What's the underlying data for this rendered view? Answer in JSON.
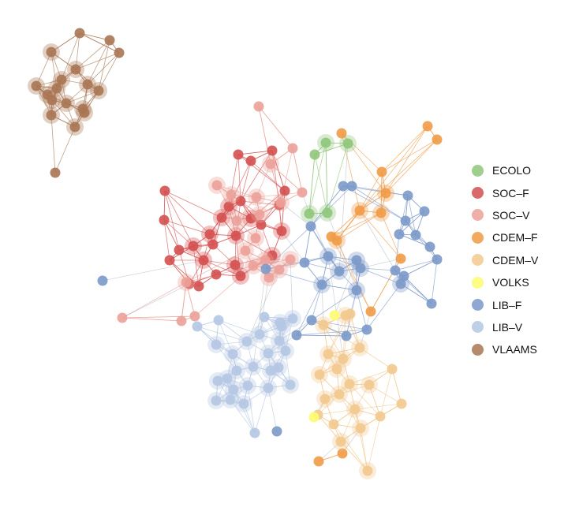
{
  "legend": {
    "items": [
      {
        "id": "ecolo",
        "label": "ECOLO",
        "color": "#8fc67a"
      },
      {
        "id": "soc_f",
        "label": "SOC–F",
        "color": "#d45050"
      },
      {
        "id": "soc_v",
        "label": "SOC–V",
        "color": "#eba199"
      },
      {
        "id": "cdem_f",
        "label": "CDEM–F",
        "color": "#ef9b47"
      },
      {
        "id": "cdem_v",
        "label": "CDEM–V",
        "color": "#f2c98e"
      },
      {
        "id": "volks",
        "label": "VOLKS",
        "color": "#fdfc70"
      },
      {
        "id": "lib_f",
        "label": "LIB–F",
        "color": "#7a99c9"
      },
      {
        "id": "lib_v",
        "label": "LIB–V",
        "color": "#b4c7e3"
      },
      {
        "id": "vlaams",
        "label": "VLAAMS",
        "color": "#a97553"
      }
    ]
  }
}
